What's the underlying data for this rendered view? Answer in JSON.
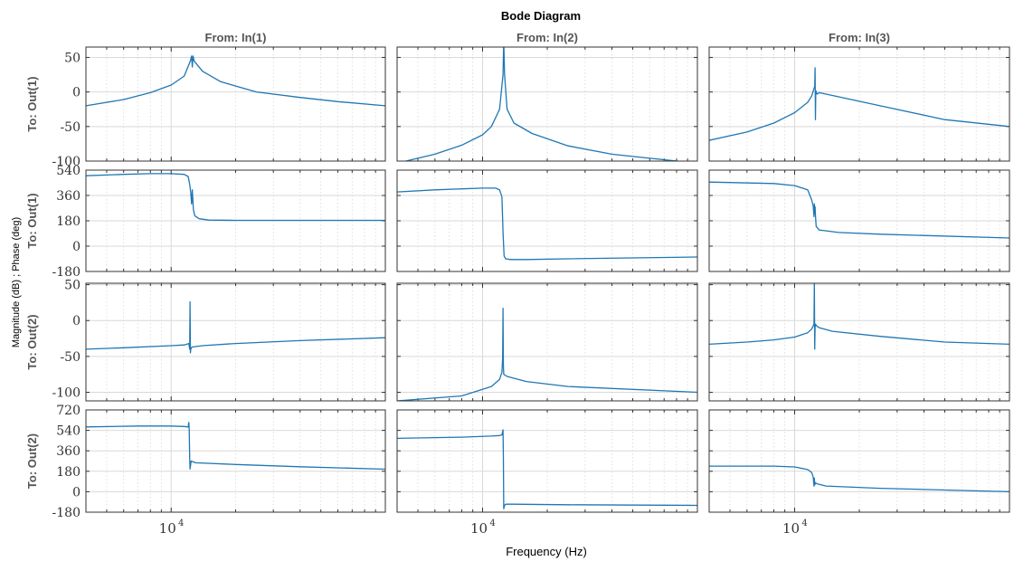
{
  "chart_data": {
    "type": "line",
    "title": "Bode Diagram",
    "xlabel": "Frequency  (Hz)",
    "ylabel": "Magnitude (dB) ; Phase (deg)",
    "x_scale": "log",
    "xlim": [
      4000,
      100000
    ],
    "x_ticks": [
      {
        "value": 10000,
        "base": "10",
        "exp": "4"
      }
    ],
    "columns": [
      "From: In(1)",
      "From: In(2)",
      "From: In(3)"
    ],
    "rows": [
      {
        "label": "To: Out(1)",
        "kind": "magnitude",
        "ylim": [
          -100,
          65
        ],
        "yticks": [
          50,
          0,
          -50,
          -100
        ]
      },
      {
        "label": "To: Out(1)",
        "kind": "phase",
        "ylim": [
          -180,
          540
        ],
        "yticks": [
          540,
          360,
          180,
          0,
          -180
        ]
      },
      {
        "label": "To: Out(2)",
        "kind": "magnitude",
        "ylim": [
          -112,
          52
        ],
        "yticks": [
          50,
          0,
          -50,
          -100
        ]
      },
      {
        "label": "To: Out(2)",
        "kind": "phase",
        "ylim": [
          -180,
          720
        ],
        "yticks": [
          720,
          540,
          360,
          180,
          0,
          -180
        ]
      }
    ],
    "grid": true,
    "series_color": "#1f77b4",
    "panels": [
      [
        {
          "x": [
            4000,
            6000,
            8000,
            10000,
            11500,
            12300,
            12450,
            12550,
            12650,
            12800,
            14000,
            17000,
            25000,
            40000,
            60000,
            100000
          ],
          "y": [
            -20,
            -11,
            -1,
            10,
            23,
            45,
            52,
            36,
            52,
            45,
            30,
            15,
            0,
            -8,
            -14,
            -20
          ]
        },
        {
          "x": [
            4000,
            6000,
            8000,
            10000,
            11500,
            12000,
            12200,
            12350,
            12450,
            12550,
            12700,
            12900,
            13500,
            15000,
            20000,
            40000,
            100000
          ],
          "y": [
            500,
            510,
            515,
            515,
            510,
            495,
            440,
            380,
            300,
            400,
            260,
            215,
            195,
            185,
            183,
            183,
            183
          ]
        },
        {
          "x": [
            4000,
            6000,
            10000,
            11500,
            12100,
            12200,
            12250,
            12300,
            12350,
            12500,
            14000,
            20000,
            40000,
            100000
          ],
          "y": [
            -40,
            -38,
            -35,
            -34,
            -32,
            -40,
            26,
            -45,
            -40,
            -37,
            -35,
            -32,
            -28,
            -24
          ]
        },
        {
          "x": [
            4000,
            7000,
            10000,
            11500,
            12000,
            12100,
            12150,
            12200,
            12250,
            12400,
            13000,
            20000,
            40000,
            100000
          ],
          "y": [
            570,
            578,
            578,
            574,
            570,
            610,
            540,
            300,
            200,
            270,
            255,
            240,
            220,
            198
          ]
        }
      ],
      [
        {
          "x": [
            4000,
            6000,
            8000,
            10000,
            11000,
            12000,
            12450,
            12550,
            12650,
            13000,
            14000,
            17000,
            25000,
            40000,
            60000,
            100000
          ],
          "y": [
            -103,
            -90,
            -77,
            -62,
            -50,
            -25,
            25,
            75,
            25,
            -25,
            -45,
            -60,
            -78,
            -90,
            -96,
            -103
          ]
        },
        {
          "x": [
            4000,
            6000,
            10000,
            11500,
            12000,
            12300,
            12450,
            12600,
            12800,
            13500,
            16000,
            25000,
            100000
          ],
          "y": [
            385,
            400,
            412,
            412,
            400,
            350,
            100,
            -70,
            -90,
            -95,
            -95,
            -90,
            -77
          ]
        },
        {
          "x": [
            4000,
            8000,
            11000,
            12000,
            12300,
            12400,
            12450,
            12500,
            12550,
            13000,
            16000,
            25000,
            100000
          ],
          "y": [
            -112,
            -105,
            -92,
            -82,
            -72,
            -52,
            17,
            -62,
            -75,
            -78,
            -85,
            -92,
            -100
          ]
        },
        {
          "x": [
            4000,
            8000,
            11000,
            12000,
            12300,
            12450,
            12500,
            12550,
            12650,
            12800,
            14000,
            25000,
            100000
          ],
          "y": [
            470,
            480,
            490,
            495,
            500,
            545,
            300,
            -150,
            -120,
            -110,
            -110,
            -115,
            -120
          ]
        }
      ],
      [
        {
          "x": [
            4000,
            6000,
            8000,
            10000,
            11500,
            12000,
            12300,
            12400,
            12450,
            12500,
            12550,
            12700,
            13000,
            15000,
            25000,
            50000,
            100000
          ],
          "y": [
            -70,
            -58,
            -45,
            -30,
            -15,
            -6,
            5,
            8,
            35,
            -40,
            2,
            -3,
            -1,
            -5,
            -20,
            -40,
            -50
          ]
        },
        {
          "x": [
            4000,
            8000,
            10000,
            11500,
            12000,
            12200,
            12300,
            12350,
            12400,
            12450,
            12500,
            12600,
            13000,
            16000,
            25000,
            100000
          ],
          "y": [
            455,
            445,
            430,
            400,
            330,
            285,
            210,
            300,
            230,
            280,
            220,
            140,
            115,
            97,
            85,
            58
          ]
        },
        {
          "x": [
            4000,
            6000,
            8000,
            10000,
            11500,
            12000,
            12300,
            12350,
            12400,
            12450,
            12500,
            12700,
            13000,
            15000,
            25000,
            50000,
            100000
          ],
          "y": [
            -33,
            -30,
            -27,
            -23,
            -17,
            -12,
            -5,
            55,
            -40,
            -10,
            -5,
            -8,
            -10,
            -15,
            -22,
            -30,
            -33
          ]
        },
        {
          "x": [
            4000,
            8000,
            10000,
            11500,
            12000,
            12200,
            12300,
            12350,
            12400,
            12500,
            12700,
            14000,
            25000,
            100000
          ],
          "y": [
            225,
            225,
            218,
            195,
            170,
            130,
            50,
            120,
            60,
            80,
            70,
            50,
            30,
            0
          ]
        }
      ]
    ]
  }
}
